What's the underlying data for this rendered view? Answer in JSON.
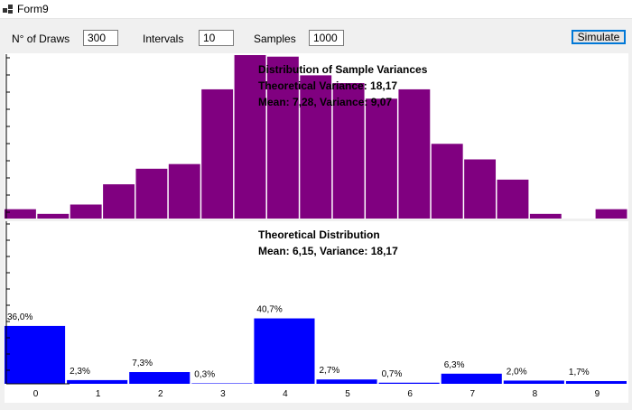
{
  "window": {
    "title": "Form9",
    "icon": "app-window-icon"
  },
  "controls": {
    "draws_label": "N° of Draws",
    "draws_value": "300",
    "intervals_label": "Intervals",
    "intervals_value": "10",
    "samples_label": "Samples",
    "samples_value": "1000",
    "simulate_label": "Simulate"
  },
  "colors": {
    "upper_bars": "#800080",
    "lower_bars": "#0000ff",
    "panel_background": "#ffffff",
    "window_background": "#f0f0f0"
  },
  "chart_data": [
    {
      "type": "bar",
      "title": "Distribution of Sample Variances",
      "annotations": [
        "Theoretical Variance: 18,17",
        "Mean: 7,28, Variance: 9,07"
      ],
      "values": [
        6,
        3,
        9,
        22,
        32,
        35,
        83,
        105,
        104,
        92,
        87,
        77,
        83,
        48,
        38,
        25,
        3,
        0,
        6
      ],
      "ylim": [
        0,
        105
      ],
      "xlabel": "",
      "ylabel": "",
      "grid": false
    },
    {
      "type": "bar",
      "title": "Theoretical Distribution",
      "annotations": [
        "Mean: 6,15, Variance: 18,17"
      ],
      "categories": [
        "0",
        "1",
        "2",
        "3",
        "4",
        "5",
        "6",
        "7",
        "8",
        "9"
      ],
      "values": [
        36.0,
        2.3,
        7.3,
        0.3,
        40.7,
        2.7,
        0.7,
        6.3,
        2.0,
        1.7
      ],
      "data_labels": [
        "36,0%",
        "2,3%",
        "7,3%",
        "0,3%",
        "40,7%",
        "2,7%",
        "0,7%",
        "6,3%",
        "2,0%",
        "1,7%"
      ],
      "ylim": [
        0,
        100
      ],
      "xlabel": "",
      "ylabel": "",
      "grid": false
    }
  ]
}
